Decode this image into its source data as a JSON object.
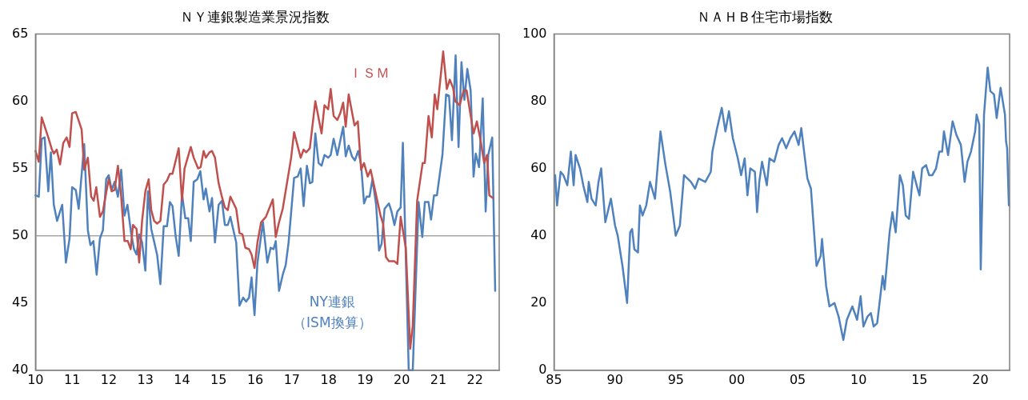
{
  "chart_data": [
    {
      "type": "line",
      "title": "ＮＹ連銀製造業景況指数",
      "xlim": [
        2010,
        2022.66
      ],
      "xticks": [
        {
          "value": 2010,
          "label": "10"
        },
        {
          "value": 2011,
          "label": "11"
        },
        {
          "value": 2012,
          "label": "12"
        },
        {
          "value": 2013,
          "label": "13"
        },
        {
          "value": 2014,
          "label": "14"
        },
        {
          "value": 2015,
          "label": "15"
        },
        {
          "value": 2016,
          "label": "16"
        },
        {
          "value": 2017,
          "label": "17"
        },
        {
          "value": 2018,
          "label": "18"
        },
        {
          "value": 2019,
          "label": "19"
        },
        {
          "value": 2020,
          "label": "20"
        },
        {
          "value": 2021,
          "label": "21"
        },
        {
          "value": 2022,
          "label": "22"
        }
      ],
      "ylim": [
        40,
        65
      ],
      "yticks": [
        40,
        45,
        50,
        55,
        60,
        65
      ],
      "grid": false,
      "legend": false,
      "ref_lines": [
        {
          "axis": "y",
          "value": 50,
          "color": "#a6a6a6"
        }
      ],
      "series": [
        {
          "name": "ＩＳＭ",
          "color": "#c0504d",
          "x": [
            2010.0,
            2010.09,
            2010.17,
            2010.35,
            2010.45,
            2010.5,
            2010.58,
            2010.67,
            2010.76,
            2010.85,
            2010.93,
            2011.0,
            2011.1,
            2011.26,
            2011.33,
            2011.43,
            2011.52,
            2011.59,
            2011.66,
            2011.76,
            2011.84,
            2011.95,
            2012.0,
            2012.08,
            2012.16,
            2012.25,
            2012.34,
            2012.43,
            2012.52,
            2012.6,
            2012.66,
            2012.76,
            2012.83,
            2012.91,
            2013.0,
            2013.09,
            2013.16,
            2013.24,
            2013.32,
            2013.41,
            2013.5,
            2013.59,
            2013.67,
            2013.74,
            2013.91,
            2014.0,
            2014.07,
            2014.24,
            2014.32,
            2014.44,
            2014.51,
            2014.59,
            2014.65,
            2014.75,
            2014.82,
            2014.9,
            2015.0,
            2015.09,
            2015.17,
            2015.25,
            2015.32,
            2015.48,
            2015.57,
            2015.65,
            2015.73,
            2015.83,
            2015.9,
            2015.98,
            2016.06,
            2016.16,
            2016.29,
            2016.48,
            2016.56,
            2016.64,
            2016.75,
            2016.98,
            2017.06,
            2017.24,
            2017.32,
            2017.39,
            2017.49,
            2017.64,
            2017.81,
            2017.89,
            2017.99,
            2018.06,
            2018.14,
            2018.24,
            2018.32,
            2018.4,
            2018.47,
            2018.55,
            2018.71,
            2018.8,
            2018.89,
            2018.97,
            2019.07,
            2019.15,
            2019.42,
            2019.49,
            2019.57,
            2019.65,
            2019.8,
            2019.88,
            2019.97,
            2020.11,
            2020.23,
            2020.3,
            2020.42,
            2020.57,
            2020.63,
            2020.73,
            2020.82,
            2020.9,
            2020.97,
            2021.13,
            2021.23,
            2021.31,
            2021.4,
            2021.46,
            2021.58,
            2021.69,
            2021.77,
            2021.96,
            2022.05,
            2022.15,
            2022.25,
            2022.33,
            2022.39,
            2022.49
          ],
          "values": [
            56.3,
            55.5,
            58.8,
            57.3,
            56.4,
            56.1,
            56.4,
            55.3,
            56.9,
            57.3,
            56.6,
            59.1,
            59.2,
            57.9,
            54.9,
            55.8,
            52.9,
            52.6,
            53.6,
            51.4,
            51.8,
            53.5,
            54.2,
            53.3,
            53.4,
            55.2,
            52.9,
            49.6,
            49.6,
            49.0,
            50.8,
            50.5,
            48.0,
            51.1,
            53.3,
            54.2,
            51.9,
            51.1,
            50.9,
            51.1,
            53.8,
            54.1,
            54.6,
            54.6,
            56.5,
            52.6,
            55.0,
            56.6,
            55.8,
            55.0,
            55.1,
            56.3,
            55.8,
            56.2,
            56.3,
            55.8,
            53.9,
            52.9,
            52.1,
            51.9,
            52.9,
            52.0,
            50.2,
            50.1,
            49.1,
            49.0,
            48.6,
            47.6,
            49.5,
            51.0,
            51.4,
            52.7,
            49.9,
            50.9,
            52.0,
            55.8,
            57.7,
            55.8,
            56.4,
            56.2,
            56.5,
            60.0,
            57.6,
            59.7,
            59.4,
            60.9,
            58.9,
            58.6,
            59.1,
            59.9,
            58.1,
            60.5,
            58.2,
            58.5,
            54.9,
            55.4,
            54.4,
            54.9,
            51.5,
            50.9,
            48.4,
            48.1,
            48.1,
            47.9,
            51.4,
            49.1,
            41.6,
            43.3,
            52.6,
            55.4,
            55.4,
            58.9,
            57.3,
            60.5,
            59.4,
            63.7,
            60.9,
            61.6,
            61.0,
            60.0,
            59.7,
            60.8,
            60.8,
            57.6,
            58.5,
            57.1,
            55.4,
            56.0,
            53.0,
            52.8
          ]
        },
        {
          "name": "NY連銀（ISM換算）",
          "color": "#4f81bd",
          "x": [
            2010.0,
            2010.09,
            2010.17,
            2010.25,
            2010.35,
            2010.42,
            2010.5,
            2010.59,
            2010.73,
            2010.83,
            2010.93,
            2011.0,
            2011.1,
            2011.18,
            2011.33,
            2011.43,
            2011.5,
            2011.58,
            2011.67,
            2011.76,
            2011.84,
            2011.93,
            2012.0,
            2012.08,
            2012.16,
            2012.25,
            2012.34,
            2012.43,
            2012.51,
            2012.61,
            2012.69,
            2012.76,
            2012.83,
            2012.91,
            2013.0,
            2013.07,
            2013.16,
            2013.32,
            2013.41,
            2013.5,
            2013.59,
            2013.67,
            2013.74,
            2013.83,
            2013.91,
            2014.0,
            2014.09,
            2014.17,
            2014.24,
            2014.32,
            2014.42,
            2014.5,
            2014.59,
            2014.65,
            2014.75,
            2014.82,
            2014.9,
            2015.0,
            2015.09,
            2015.17,
            2015.25,
            2015.32,
            2015.48,
            2015.57,
            2015.67,
            2015.75,
            2015.83,
            2015.9,
            2015.98,
            2016.06,
            2016.21,
            2016.33,
            2016.42,
            2016.5,
            2016.56,
            2016.65,
            2016.75,
            2016.83,
            2016.91,
            2017.06,
            2017.16,
            2017.24,
            2017.32,
            2017.41,
            2017.49,
            2017.56,
            2017.64,
            2017.73,
            2017.81,
            2017.89,
            2017.99,
            2018.06,
            2018.14,
            2018.24,
            2018.4,
            2018.47,
            2018.55,
            2018.64,
            2018.72,
            2018.81,
            2018.89,
            2018.97,
            2019.04,
            2019.12,
            2019.2,
            2019.3,
            2019.38,
            2019.45,
            2019.53,
            2019.65,
            2019.72,
            2019.8,
            2019.88,
            2019.97,
            2020.03,
            2020.19,
            2020.3,
            2020.46,
            2020.56,
            2020.63,
            2020.73,
            2020.8,
            2020.88,
            2020.96,
            2021.11,
            2021.21,
            2021.29,
            2021.37,
            2021.47,
            2021.55,
            2021.63,
            2021.71,
            2021.79,
            2021.88,
            2021.96,
            2022.02,
            2022.11,
            2022.21,
            2022.29,
            2022.36,
            2022.47,
            2022.55
          ],
          "values": [
            53.0,
            52.9,
            57.2,
            57.3,
            53.3,
            56.2,
            52.3,
            51.1,
            52.3,
            48.0,
            49.8,
            53.6,
            53.4,
            52.0,
            56.8,
            50.4,
            49.3,
            49.6,
            47.1,
            49.8,
            50.4,
            54.2,
            54.5,
            53.4,
            54.0,
            52.9,
            54.9,
            51.5,
            52.3,
            50.2,
            49.0,
            48.6,
            50.1,
            49.5,
            47.4,
            53.3,
            50.5,
            48.6,
            46.4,
            50.7,
            50.7,
            52.5,
            52.2,
            49.9,
            48.5,
            53.1,
            51.3,
            51.3,
            49.6,
            54.0,
            54.2,
            54.8,
            52.7,
            53.5,
            51.8,
            52.8,
            49.5,
            52.3,
            52.6,
            50.8,
            50.8,
            51.4,
            49.5,
            44.8,
            45.4,
            45.1,
            45.4,
            46.9,
            44.1,
            48.0,
            51.0,
            48.0,
            49.1,
            49.0,
            49.6,
            45.9,
            47.1,
            47.8,
            49.5,
            54.3,
            54.4,
            55.0,
            52.2,
            55.2,
            53.9,
            54.0,
            57.6,
            55.4,
            55.2,
            56.0,
            55.8,
            56.0,
            57.2,
            56.0,
            58.1,
            55.9,
            56.7,
            55.9,
            55.6,
            56.3,
            55.3,
            52.4,
            52.9,
            52.9,
            54.2,
            52.3,
            48.9,
            49.4,
            52.0,
            52.4,
            51.8,
            50.8,
            51.8,
            52.1,
            56.9,
            40,
            40,
            52.5,
            49.9,
            52.5,
            52.5,
            51.2,
            53.0,
            53.0,
            56.0,
            60.5,
            60.4,
            57.1,
            63.4,
            56.6,
            62.9,
            60.1,
            62.4,
            60.8,
            54.4,
            56.1,
            55.1,
            60.2,
            51.8,
            56.0,
            57.3,
            45.9
          ]
        }
      ]
    },
    {
      "type": "line",
      "title": "ＮＡＨＢ住宅市場指数",
      "xlim": [
        1985,
        2022.4
      ],
      "xticks": [
        {
          "value": 1985,
          "label": "85"
        },
        {
          "value": 1990,
          "label": "90"
        },
        {
          "value": 1995,
          "label": "95"
        },
        {
          "value": 2000,
          "label": "00"
        },
        {
          "value": 2005,
          "label": "05"
        },
        {
          "value": 2010,
          "label": "10"
        },
        {
          "value": 2015,
          "label": "15"
        },
        {
          "value": 2020,
          "label": "20"
        }
      ],
      "ylim": [
        0,
        100
      ],
      "yticks": [
        0,
        20,
        40,
        60,
        80,
        100
      ],
      "grid": false,
      "legend": false,
      "series": [
        {
          "color": "#4f81bd",
          "x": [
            1985.09,
            1985.25,
            1985.54,
            1985.77,
            1986.09,
            1986.38,
            1986.61,
            1986.77,
            1987.13,
            1987.4,
            1987.74,
            1987.85,
            1988.08,
            1988.42,
            1988.65,
            1988.87,
            1989.21,
            1989.67,
            1990.01,
            1990.23,
            1990.62,
            1991.0,
            1991.25,
            1991.41,
            1991.59,
            1991.89,
            1992.05,
            1992.27,
            1992.57,
            1992.88,
            1993.29,
            1993.74,
            1994.15,
            1994.54,
            1994.99,
            1995.33,
            1995.67,
            1996.24,
            1996.58,
            1996.87,
            1997.42,
            1997.87,
            1998.0,
            1998.39,
            1998.77,
            1999.07,
            1999.36,
            1999.68,
            2000.09,
            2000.36,
            2000.65,
            2000.88,
            2001.11,
            2001.49,
            2001.67,
            2001.85,
            2002.08,
            2002.47,
            2002.69,
            2003.08,
            2003.44,
            2003.72,
            2004.06,
            2004.4,
            2004.74,
            2005.08,
            2005.3,
            2005.53,
            2005.8,
            2006.09,
            2006.55,
            2006.89,
            2007.0,
            2007.34,
            2007.61,
            2008.02,
            2008.36,
            2008.75,
            2009.04,
            2009.49,
            2009.88,
            2010.17,
            2010.4,
            2010.74,
            2011.01,
            2011.24,
            2011.53,
            2011.98,
            2012.14,
            2012.55,
            2012.78,
            2013.05,
            2013.39,
            2013.64,
            2013.87,
            2014.14,
            2014.48,
            2014.77,
            2015.0,
            2015.22,
            2015.54,
            2015.79,
            2016.06,
            2016.36,
            2016.63,
            2016.86,
            2017.01,
            2017.35,
            2017.72,
            2018.03,
            2018.4,
            2018.71,
            2018.94,
            2019.23,
            2019.57,
            2019.69,
            2019.91,
            2020.03,
            2020.3,
            2020.6,
            2020.82,
            2021.12,
            2021.34,
            2021.66,
            2022.02,
            2022.11,
            2022.2,
            2022.34
          ],
          "values": [
            58,
            49,
            59,
            58,
            55,
            65,
            55,
            64,
            60,
            55,
            50,
            56,
            51,
            49,
            56,
            60,
            44,
            51,
            43,
            40,
            31,
            20,
            41,
            42,
            36,
            35,
            49,
            46,
            49,
            56,
            51,
            71,
            61,
            53,
            40,
            43,
            58,
            56,
            54,
            57,
            56,
            59,
            65,
            72,
            78,
            71,
            77,
            69,
            63,
            58,
            63,
            52,
            60,
            59,
            47,
            56,
            62,
            55,
            63,
            62,
            67,
            69,
            66,
            69,
            71,
            67,
            72,
            65,
            57,
            54,
            31,
            34,
            39,
            25,
            19,
            20,
            16,
            9,
            15,
            19,
            15,
            22,
            13,
            16,
            17,
            13,
            14,
            28,
            24,
            41,
            47,
            41,
            58,
            55,
            46,
            45,
            59,
            55,
            52,
            60,
            61,
            58,
            58,
            60,
            65,
            65,
            71,
            64,
            74,
            70,
            67,
            56,
            62,
            65,
            71,
            76,
            73,
            30,
            76,
            90,
            83,
            82,
            75,
            84,
            76,
            68,
            66,
            49
          ]
        }
      ]
    }
  ]
}
